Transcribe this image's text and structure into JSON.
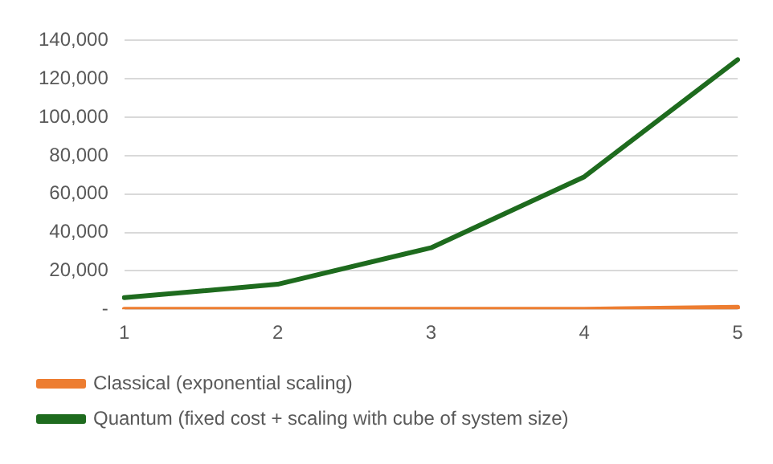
{
  "chart_data": {
    "type": "line",
    "categories": [
      "1",
      "2",
      "3",
      "4",
      "5"
    ],
    "series": [
      {
        "name": "Classical (exponential scaling)",
        "color": "#ed7d31",
        "values": [
          0,
          0,
          0,
          0,
          1000
        ]
      },
      {
        "name": "Quantum (fixed cost + scaling with cube of system size)",
        "color": "#1e6b1e",
        "values": [
          6000,
          13000,
          32000,
          69000,
          130000
        ]
      }
    ],
    "ylim": [
      0,
      140000
    ],
    "yticks": [
      {
        "value": 0,
        "label": "-"
      },
      {
        "value": 20000,
        "label": "20,000"
      },
      {
        "value": 40000,
        "label": "40,000"
      },
      {
        "value": 60000,
        "label": "60,000"
      },
      {
        "value": 80000,
        "label": "80,000"
      },
      {
        "value": 100000,
        "label": "100,000"
      },
      {
        "value": 120000,
        "label": "120,000"
      },
      {
        "value": 140000,
        "label": "140,000"
      }
    ],
    "grid": "y",
    "legend": "bottom",
    "marker": "none",
    "line_style": "solid"
  }
}
